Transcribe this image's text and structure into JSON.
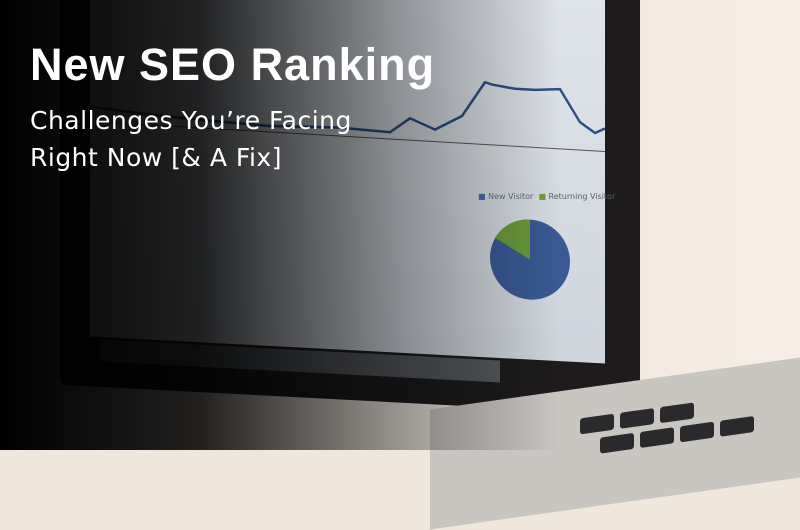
{
  "headline": {
    "title": "New SEO Ranking",
    "subtitle_line1": "Challenges You’re Facing",
    "subtitle_line2": "Right Now [& A Fix]"
  },
  "screen": {
    "legend": [
      "New Visitor",
      "Returning Visitor"
    ],
    "pie_share": [
      0.85,
      0.15
    ],
    "colors": {
      "new": "#3a5a94",
      "returning": "#6a9a3a",
      "line": "#2e4f86"
    }
  }
}
